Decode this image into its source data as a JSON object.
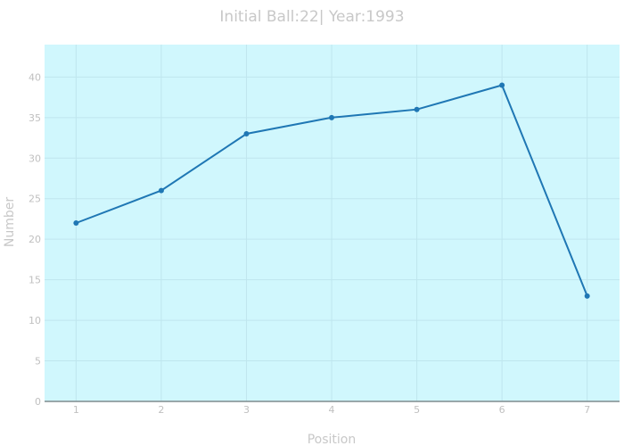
{
  "chart_data": {
    "type": "line",
    "title": "Initial Ball:22| Year:1993",
    "xlabel": "Position",
    "ylabel": "Number",
    "x": [
      1,
      2,
      3,
      4,
      5,
      6,
      7
    ],
    "series": [
      {
        "values": [
          22,
          26,
          33,
          35,
          36,
          39,
          13
        ]
      }
    ],
    "xlim": [
      0.63,
      7.38
    ],
    "ylim": [
      0,
      44
    ],
    "xticks": [
      1,
      2,
      3,
      4,
      5,
      6,
      7
    ],
    "yticks": [
      0,
      5,
      10,
      15,
      20,
      25,
      30,
      35,
      40
    ],
    "grid": true,
    "legend": "none"
  },
  "colors": {
    "plot_background": "#d0f7fd",
    "line": "#1f77b4",
    "grid": "#bfe6ee",
    "axis": "#7f8c8d"
  }
}
